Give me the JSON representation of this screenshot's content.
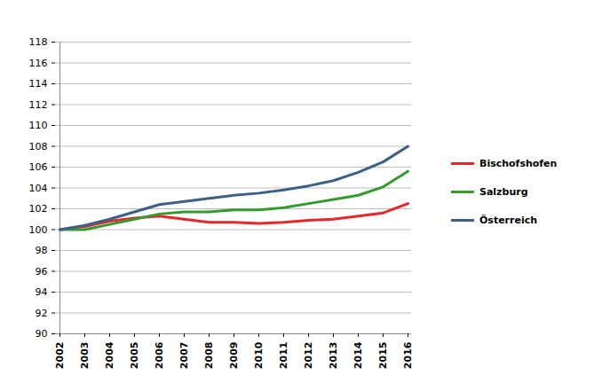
{
  "chart_data": {
    "type": "line",
    "x": [
      2002,
      2003,
      2004,
      2005,
      2006,
      2007,
      2008,
      2009,
      2010,
      2011,
      2012,
      2013,
      2014,
      2015,
      2016
    ],
    "series": [
      {
        "name": "Bischofshofen",
        "color": "#e8262a",
        "values": [
          100,
          100.3,
          100.8,
          101.1,
          101.3,
          101.0,
          100.7,
          100.7,
          100.6,
          100.7,
          100.9,
          101.0,
          101.3,
          101.6,
          102.5
        ]
      },
      {
        "name": "Salzburg",
        "color": "#339a2e",
        "values": [
          100,
          100.0,
          100.5,
          101.0,
          101.5,
          101.7,
          101.7,
          101.9,
          101.9,
          102.1,
          102.5,
          102.9,
          103.3,
          104.1,
          105.6
        ]
      },
      {
        "name": "Österreich",
        "color": "#3c5f88",
        "values": [
          100,
          100.4,
          101.0,
          101.7,
          102.4,
          102.7,
          103.0,
          103.3,
          103.5,
          103.8,
          104.2,
          104.7,
          105.5,
          106.5,
          108.0
        ]
      }
    ],
    "ylim": [
      90,
      118
    ],
    "yticks": [
      90,
      92,
      94,
      96,
      98,
      100,
      102,
      104,
      106,
      108,
      110,
      112,
      114,
      116,
      118
    ],
    "grid": true,
    "legend": "right"
  }
}
